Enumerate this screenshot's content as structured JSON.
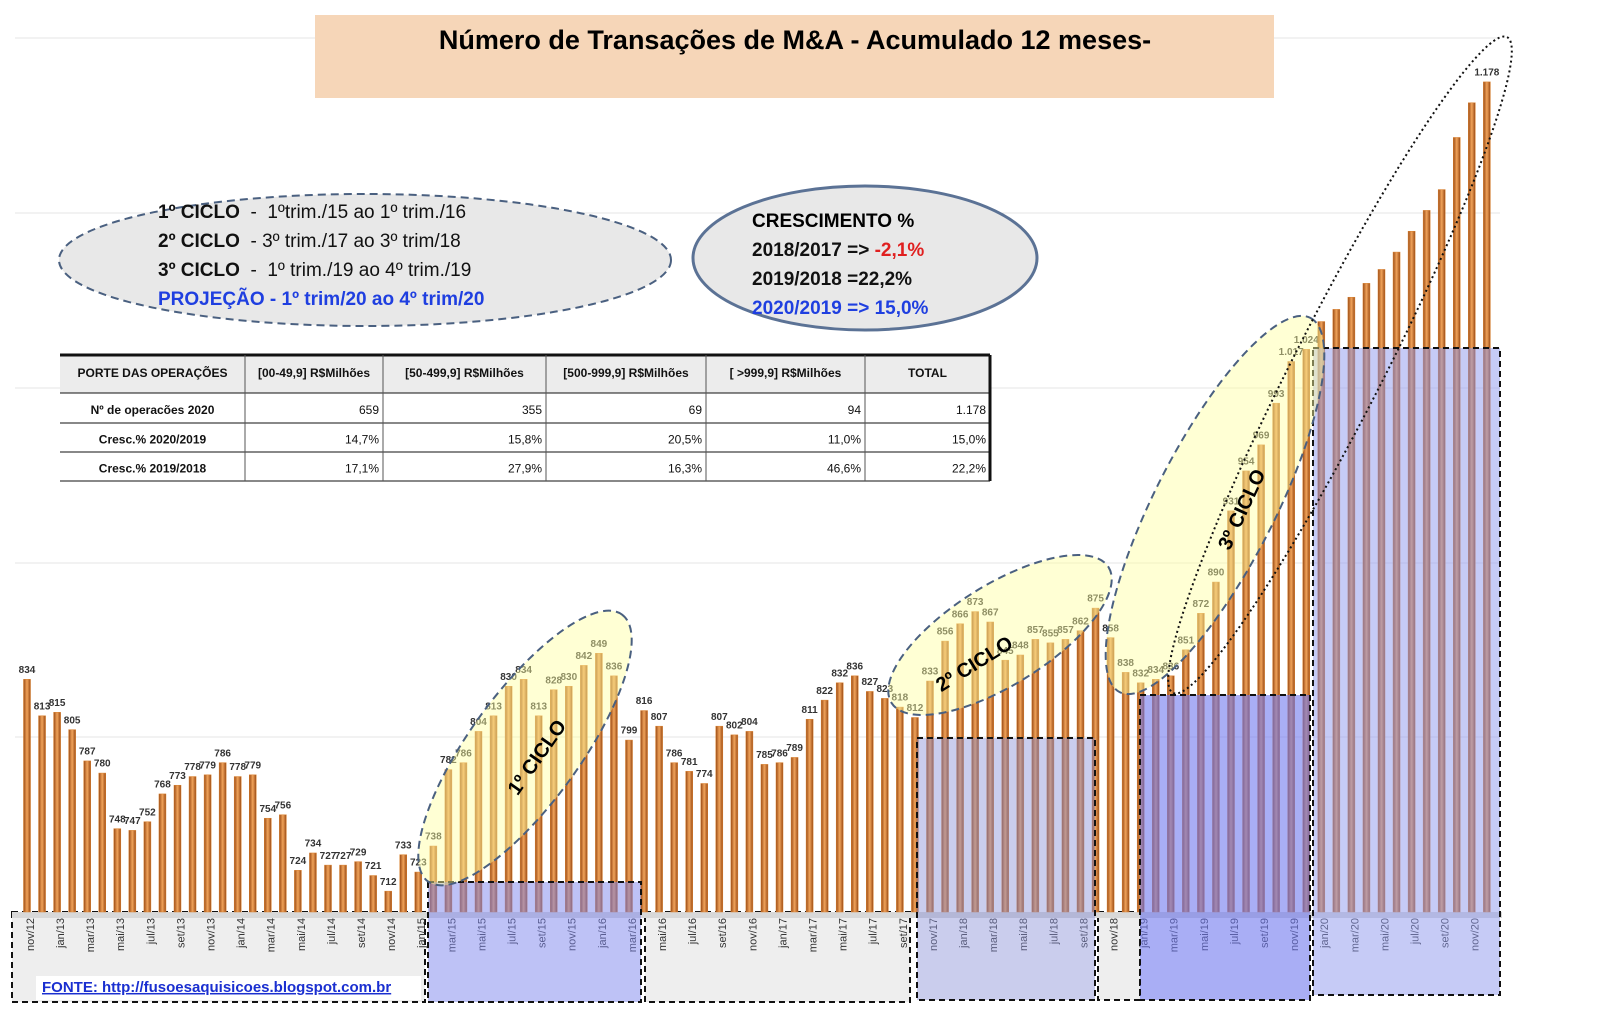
{
  "chart_data": {
    "type": "bar",
    "title": "Número de Transações de M&A - Acumulado 12 meses-",
    "categories": [
      "nov/12",
      null,
      "jan/13",
      null,
      "mar/13",
      null,
      "mai/13",
      null,
      "jul/13",
      null,
      "set/13",
      null,
      "nov/13",
      null,
      "jan/14",
      null,
      "mar/14",
      null,
      "mai/14",
      null,
      "jul/14",
      null,
      "set/14",
      null,
      "nov/14",
      null,
      "jan/15",
      null,
      "mar/15",
      null,
      "mai/15",
      null,
      "jul/15",
      null,
      "set/15",
      null,
      "nov/15",
      null,
      "jan/16",
      null,
      "mar/16",
      null,
      "mai/16",
      null,
      "jul/16",
      null,
      "set/16",
      null,
      "nov/16",
      null,
      "jan/17",
      null,
      "mar/17",
      null,
      "mai/17",
      null,
      "jul/17",
      null,
      "set/17",
      null,
      "nov/17",
      null,
      "jan/18",
      null,
      "mar/18",
      null,
      "mai/18",
      null,
      "jul/18",
      null,
      "set/18",
      null,
      "nov/18",
      null,
      "jan/19",
      null,
      "mar/19",
      null,
      "mai/19",
      null,
      "jul/19",
      null,
      "set/19",
      null,
      "nov/19",
      null,
      "jan/20",
      null,
      "mar/20",
      null,
      "mai/20",
      null,
      "jul/20",
      null,
      "set/20",
      null,
      "nov/20",
      null
    ],
    "values": [
      834,
      813,
      815,
      805,
      787,
      780,
      748,
      747,
      752,
      768,
      773,
      778,
      779,
      786,
      778,
      779,
      754,
      756,
      724,
      734,
      727,
      727,
      729,
      721,
      712,
      733,
      723,
      738,
      782,
      786,
      804,
      813,
      830,
      834,
      813,
      828,
      830,
      842,
      849,
      836,
      799,
      816,
      807,
      786,
      781,
      774,
      807,
      802,
      804,
      785,
      786,
      789,
      811,
      822,
      832,
      836,
      827,
      823,
      818,
      812,
      833,
      856,
      866,
      873,
      867,
      845,
      848,
      857,
      855,
      857,
      862,
      875,
      858,
      838,
      832,
      834,
      836,
      851,
      872,
      890,
      931,
      954,
      969,
      993,
      1017,
      1024,
      1040,
      1047,
      1054,
      1062,
      1070,
      1080,
      1092,
      1104,
      1116,
      1146,
      1166,
      1178
    ],
    "value_labels": [
      "834",
      "813",
      "815",
      "805",
      "787",
      "780",
      "748",
      "747",
      "752",
      "768",
      "773",
      "778",
      "779",
      "786",
      "778",
      "779",
      "754",
      "756",
      "724",
      "734",
      "727",
      "727",
      "729",
      "721",
      "712",
      "733",
      "723",
      "738",
      "782",
      "786",
      "804",
      "813",
      "830",
      "834",
      "813",
      "828",
      "830",
      "842",
      "849",
      "836",
      "799",
      "816",
      "807",
      "786",
      "781",
      "774",
      "807",
      "802",
      "804",
      "785",
      "786",
      "789",
      "811",
      "822",
      "832",
      "836",
      "827",
      "823",
      "818",
      "812",
      "833",
      "856",
      "866",
      "873",
      "867",
      "845",
      "848",
      "857",
      "855",
      "857",
      "862",
      "875",
      "858",
      "838",
      "832",
      "834",
      "836",
      "851",
      "872",
      "890",
      "931",
      "954",
      "969",
      "993",
      "1.017",
      "1.024",
      null,
      null,
      null,
      null,
      null,
      null,
      null,
      null,
      null,
      null,
      null,
      "1.178"
    ],
    "color": "#d9802e",
    "ylim": [
      700,
      1205
    ],
    "annotations": [
      "1º CICLO",
      "2º CICLO",
      "3º CICLO"
    ]
  },
  "cycles": [
    [
      "1º CICLO",
      "  -  1ºtrim./15 ao 1º trim./16"
    ],
    [
      "2º CICLO",
      "  - 3º trim./17 ao 3º trim/18"
    ],
    [
      "3º CICLO",
      "  -  1º trim./19 ao 4º trim./19"
    ],
    [
      "PROJEÇÃO - 1º trim/20 ao 4º trim/20"
    ]
  ],
  "growth": {
    "title": "CRESCIMENTO %",
    "lines": [
      [
        "2018/2017 => ",
        "-2,1%"
      ],
      [
        "2019/2018 =22,2%"
      ],
      [
        "2020/2019 => 15,0%"
      ]
    ]
  },
  "table": {
    "header": [
      "PORTE DAS OPERAÇÕES",
      "[00-49,9] R$Milhões",
      "[50-499,9] R$Milhões",
      "[500-999,9] R$Milhões",
      "[ >999,9] R$Milhões",
      "TOTAL"
    ],
    "rows": [
      [
        "Nº de operacões 2020",
        "659",
        "355",
        "69",
        "94",
        "1.178"
      ],
      [
        "Cresc.% 2020/2019",
        "14,7%",
        "15,8%",
        "20,5%",
        "11,0%",
        "15,0%"
      ],
      [
        "Cresc.% 2019/2018",
        "17,1%",
        "27,9%",
        "16,3%",
        "46,6%",
        "22,2%"
      ]
    ]
  },
  "source": "FONTE: http://fusoesaquisicoes.blogspot.com.br"
}
